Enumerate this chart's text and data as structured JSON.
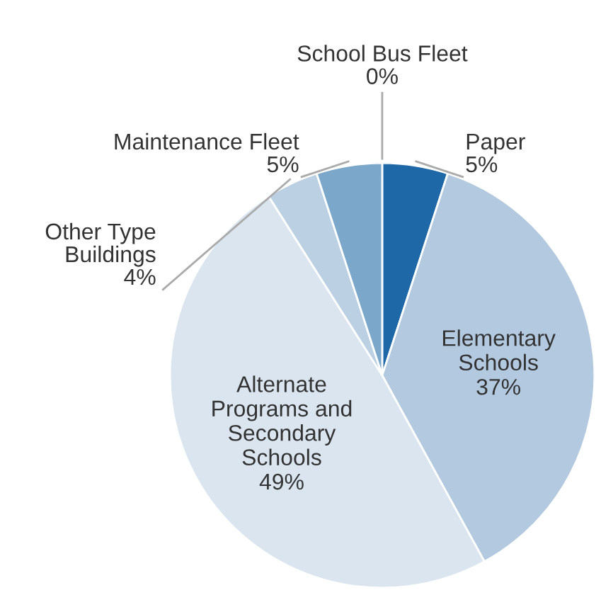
{
  "chart_data": {
    "type": "pie",
    "categories": [
      "School Bus Fleet",
      "Paper",
      "Elementary\nSchools",
      "Alternate\nPrograms and\nSecondary\nSchools",
      "Other Type\nBuildings",
      "Maintenance Fleet"
    ],
    "values": [
      0,
      5,
      37,
      49,
      4,
      5
    ],
    "value_labels": [
      "0%",
      "5%",
      "37%",
      "49%",
      "4%",
      "5%"
    ],
    "colors": [
      "#e8eef5",
      "#1f68a8",
      "#b3c9e0",
      "#dae5f0",
      "#bcd0e4",
      "#7ba7cb"
    ]
  }
}
